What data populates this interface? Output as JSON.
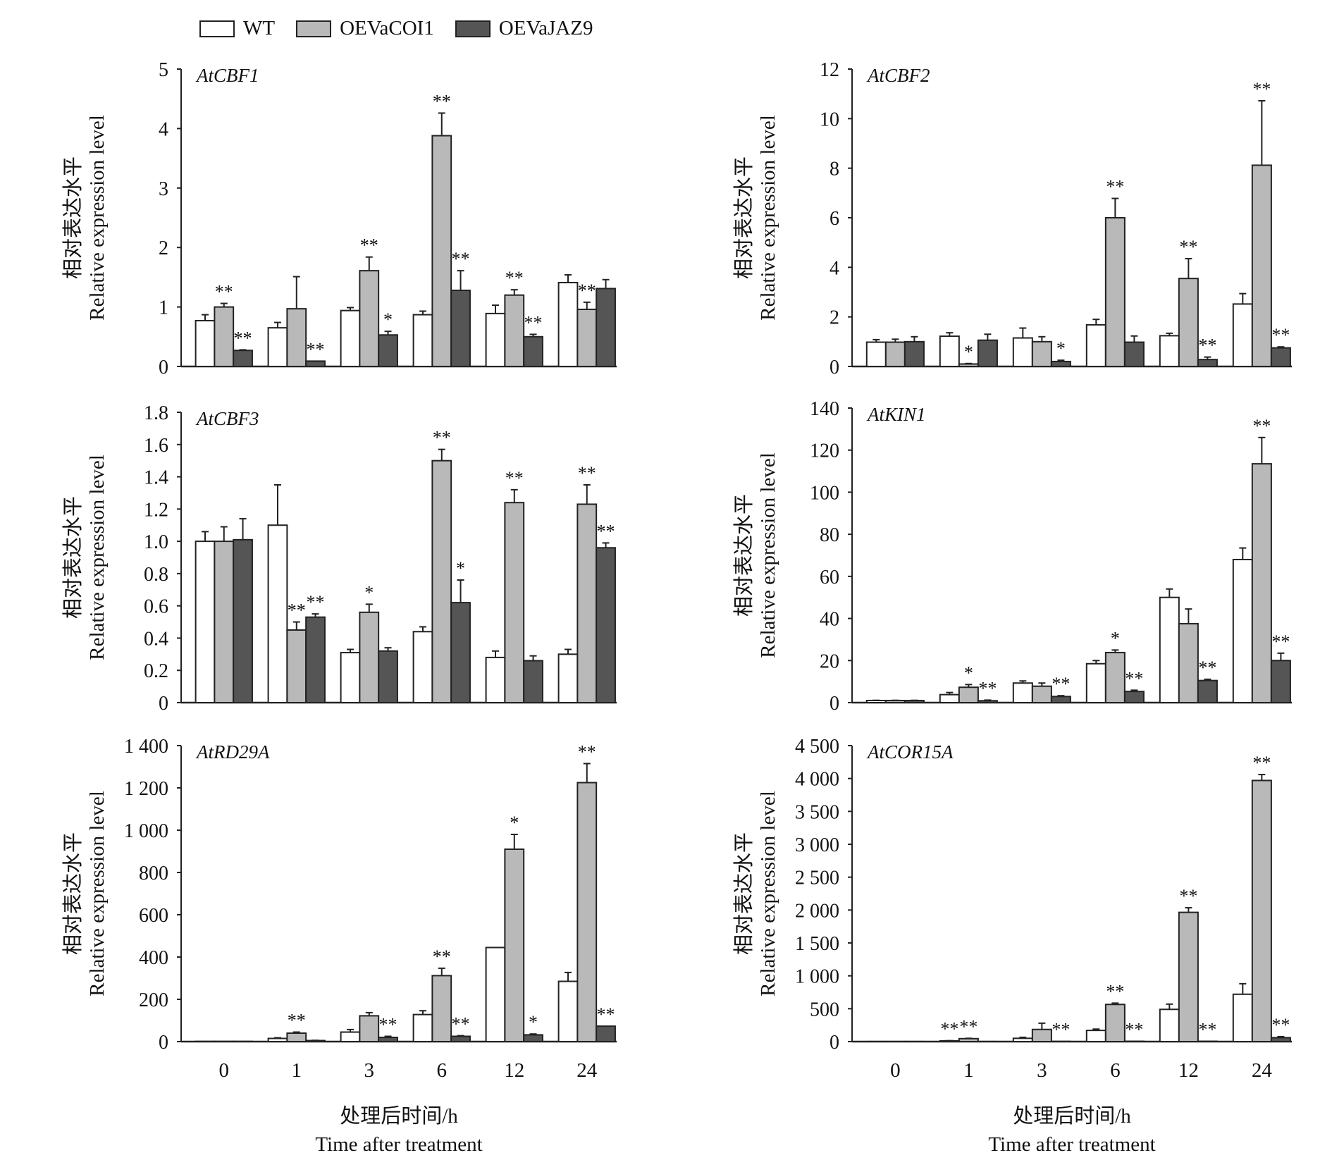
{
  "legend": {
    "items": [
      {
        "label": "WT",
        "color": "#ffffff"
      },
      {
        "label": "OEVaCOI1",
        "color": "#b9b9b9"
      },
      {
        "label": "OEVaJAZ9",
        "color": "#555555"
      }
    ]
  },
  "axis_text": {
    "ylabel_cn": "相对表达水平",
    "ylabel_en": "Relative expression level",
    "xlabel_cn": "处理后时间/h",
    "xlabel_en": "Time after treatment"
  },
  "chart_data": [
    {
      "type": "bar",
      "title": "AtCBF1",
      "categories": [
        "0",
        "1",
        "3",
        "6",
        "12",
        "24"
      ],
      "ylim": [
        0,
        5
      ],
      "yticks": [
        0,
        1,
        2,
        3,
        4,
        5
      ],
      "ytick_labels": [
        "0",
        "1",
        "2",
        "3",
        "4",
        "5"
      ],
      "show_xticks": false,
      "series": [
        {
          "name": "WT",
          "values": [
            0.77,
            0.65,
            0.94,
            0.87,
            0.89,
            1.41
          ],
          "errors": [
            0.1,
            0.09,
            0.05,
            0.06,
            0.14,
            0.13
          ],
          "sig": [
            "",
            "",
            "",
            "",
            "",
            ""
          ]
        },
        {
          "name": "OEVaCOI1",
          "values": [
            1.0,
            0.97,
            1.61,
            3.88,
            1.2,
            0.96
          ],
          "errors": [
            0.06,
            0.54,
            0.23,
            0.38,
            0.09,
            0.12
          ],
          "sig": [
            "**",
            "",
            "**",
            "**",
            "**",
            "**"
          ]
        },
        {
          "name": "OEVaJAZ9",
          "values": [
            0.27,
            0.09,
            0.53,
            1.28,
            0.5,
            1.31
          ],
          "errors": [
            0.01,
            0.0,
            0.06,
            0.33,
            0.04,
            0.15
          ],
          "sig": [
            "**",
            "**",
            "*",
            "**",
            "**",
            ""
          ]
        }
      ]
    },
    {
      "type": "bar",
      "title": "AtCBF2",
      "categories": [
        "0",
        "1",
        "3",
        "6",
        "12",
        "24"
      ],
      "ylim": [
        0,
        12
      ],
      "yticks": [
        0,
        2,
        4,
        6,
        8,
        10,
        12
      ],
      "ytick_labels": [
        "0",
        "2",
        "4",
        "6",
        "8",
        "10",
        "12"
      ],
      "show_xticks": false,
      "series": [
        {
          "name": "WT",
          "values": [
            0.98,
            1.22,
            1.15,
            1.68,
            1.24,
            2.52
          ],
          "errors": [
            0.1,
            0.14,
            0.4,
            0.22,
            0.1,
            0.42
          ],
          "sig": [
            "",
            "",
            "",
            "",
            "",
            ""
          ]
        },
        {
          "name": "OEVaCOI1",
          "values": [
            0.98,
            0.1,
            1.0,
            6.0,
            3.55,
            8.12
          ],
          "errors": [
            0.12,
            0.02,
            0.2,
            0.78,
            0.8,
            2.6
          ],
          "sig": [
            "",
            "*",
            "",
            "**",
            "**",
            "**"
          ]
        },
        {
          "name": "OEVaJAZ9",
          "values": [
            1.0,
            1.06,
            0.2,
            0.98,
            0.28,
            0.75
          ],
          "errors": [
            0.2,
            0.24,
            0.05,
            0.25,
            0.1,
            0.04
          ],
          "sig": [
            "",
            "",
            "*",
            "",
            "**",
            "**"
          ]
        }
      ]
    },
    {
      "type": "bar",
      "title": "AtCBF3",
      "categories": [
        "0",
        "1",
        "3",
        "6",
        "12",
        "24"
      ],
      "ylim": [
        0,
        1.8
      ],
      "yticks": [
        0,
        0.2,
        0.4,
        0.6,
        0.8,
        1.0,
        1.2,
        1.4,
        1.6,
        1.8
      ],
      "ytick_labels": [
        "0",
        "0.2",
        "0.4",
        "0.6",
        "0.8",
        "1.0",
        "1.2",
        "1.4",
        "1.6",
        "1.8"
      ],
      "show_xticks": false,
      "series": [
        {
          "name": "WT",
          "values": [
            1.0,
            1.1,
            0.31,
            0.44,
            0.28,
            0.3
          ],
          "errors": [
            0.06,
            0.25,
            0.02,
            0.03,
            0.04,
            0.03
          ],
          "sig": [
            "",
            "",
            "",
            "",
            "",
            ""
          ]
        },
        {
          "name": "OEVaCOI1",
          "values": [
            1.0,
            0.45,
            0.56,
            1.5,
            1.24,
            1.23
          ],
          "errors": [
            0.09,
            0.05,
            0.05,
            0.07,
            0.08,
            0.12
          ],
          "sig": [
            "",
            "**",
            "*",
            "**",
            "**",
            "**"
          ]
        },
        {
          "name": "OEVaJAZ9",
          "values": [
            1.01,
            0.53,
            0.32,
            0.62,
            0.26,
            0.96
          ],
          "errors": [
            0.13,
            0.02,
            0.02,
            0.14,
            0.03,
            0.03
          ],
          "sig": [
            "",
            "**",
            "",
            "*",
            "",
            "**"
          ]
        }
      ]
    },
    {
      "type": "bar",
      "title": "AtKIN1",
      "categories": [
        "0",
        "1",
        "3",
        "6",
        "12",
        "24"
      ],
      "ylim": [
        0,
        140
      ],
      "yticks": [
        0,
        20,
        40,
        60,
        80,
        100,
        120,
        140
      ],
      "ytick_labels": [
        "0",
        "20",
        "40",
        "60",
        "80",
        "100",
        "120",
        "140"
      ],
      "show_xticks": false,
      "series": [
        {
          "name": "WT",
          "values": [
            1.0,
            3.8,
            9.3,
            18.5,
            50.0,
            68.0
          ],
          "errors": [
            0.1,
            1.0,
            1.0,
            1.5,
            4.0,
            5.5
          ],
          "sig": [
            "",
            "",
            "",
            "",
            "",
            ""
          ]
        },
        {
          "name": "OEVaCOI1",
          "values": [
            1.0,
            7.3,
            7.8,
            23.8,
            37.5,
            113.5
          ],
          "errors": [
            0.1,
            1.3,
            1.5,
            1.2,
            7.0,
            12.5
          ],
          "sig": [
            "",
            "*",
            "",
            "*",
            "",
            "**"
          ]
        },
        {
          "name": "OEVaJAZ9",
          "values": [
            1.0,
            0.9,
            2.9,
            5.3,
            10.5,
            20.0
          ],
          "errors": [
            0.1,
            0.3,
            0.4,
            0.6,
            0.6,
            3.5
          ],
          "sig": [
            "",
            "**",
            "**",
            "**",
            "**",
            "**"
          ]
        }
      ]
    },
    {
      "type": "bar",
      "title": "AtRD29A",
      "categories": [
        "0",
        "1",
        "3",
        "6",
        "12",
        "24"
      ],
      "ylim": [
        0,
        1400
      ],
      "yticks": [
        0,
        200,
        400,
        600,
        800,
        1000,
        1200,
        1400
      ],
      "ytick_labels": [
        "0",
        "200",
        "400",
        "600",
        "800",
        "1 000",
        "1 200",
        "1 400"
      ],
      "show_xticks": true,
      "series": [
        {
          "name": "WT",
          "values": [
            1,
            15,
            45,
            128,
            445,
            285
          ],
          "errors": [
            0,
            3,
            12,
            18,
            0,
            42
          ],
          "sig": [
            "",
            "",
            "",
            "",
            "",
            ""
          ]
        },
        {
          "name": "OEVaCOI1",
          "values": [
            1,
            40,
            122,
            312,
            910,
            1225
          ],
          "errors": [
            0,
            5,
            15,
            35,
            70,
            90
          ],
          "sig": [
            "",
            "**",
            "",
            "**",
            "*",
            "**"
          ]
        },
        {
          "name": "OEVaJAZ9",
          "values": [
            1,
            5,
            20,
            25,
            32,
            73
          ],
          "errors": [
            0,
            1,
            5,
            3,
            4,
            0
          ],
          "sig": [
            "",
            "",
            "**",
            "**",
            "*",
            "**"
          ]
        }
      ]
    },
    {
      "type": "bar",
      "title": "AtCOR15A",
      "categories": [
        "0",
        "1",
        "3",
        "6",
        "12",
        "24"
      ],
      "ylim": [
        0,
        4500
      ],
      "yticks": [
        0,
        500,
        1000,
        1500,
        2000,
        2500,
        3000,
        3500,
        4000,
        4500
      ],
      "ytick_labels": [
        "0",
        "500",
        "1 000",
        "1 500",
        "2 000",
        "2 500",
        "3 000",
        "3 500",
        "4 000",
        "4 500"
      ],
      "show_xticks": true,
      "series": [
        {
          "name": "WT",
          "values": [
            1,
            12,
            50,
            170,
            490,
            720
          ],
          "errors": [
            0,
            2,
            15,
            20,
            80,
            160
          ],
          "sig": [
            "",
            "**",
            "",
            "",
            "",
            ""
          ]
        },
        {
          "name": "OEVaCOI1",
          "values": [
            1,
            45,
            185,
            565,
            1965,
            3970
          ],
          "errors": [
            0,
            5,
            95,
            20,
            70,
            90
          ],
          "sig": [
            "",
            "**",
            "",
            "**",
            "**",
            "**"
          ]
        },
        {
          "name": "OEVaJAZ9",
          "values": [
            1,
            1,
            3,
            5,
            5,
            60
          ],
          "errors": [
            0,
            0,
            0,
            0,
            0,
            15
          ],
          "sig": [
            "",
            "",
            "**",
            "**",
            "**",
            "**"
          ]
        }
      ]
    }
  ]
}
